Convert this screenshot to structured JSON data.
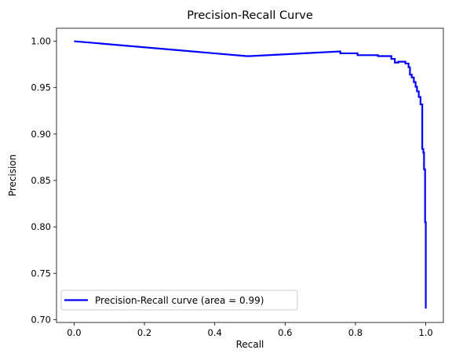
{
  "chart_data": {
    "type": "line",
    "title": "Precision-Recall Curve",
    "xlabel": "Recall",
    "ylabel": "Precision",
    "xlim": [
      -0.05,
      1.05
    ],
    "ylim": [
      0.697,
      1.014
    ],
    "xticks": [
      0.0,
      0.2,
      0.4,
      0.6,
      0.8,
      1.0
    ],
    "xtick_labels": [
      "0.0",
      "0.2",
      "0.4",
      "0.6",
      "0.8",
      "1.0"
    ],
    "yticks": [
      0.7,
      0.75,
      0.8,
      0.85,
      0.9,
      0.95,
      1.0
    ],
    "ytick_labels": [
      "0.70",
      "0.75",
      "0.80",
      "0.85",
      "0.90",
      "0.95",
      "1.00"
    ],
    "grid": false,
    "legend_position": "lower-left",
    "series": [
      {
        "name": "Precision-Recall curve (area = 0.99)",
        "color": "#0000ff",
        "x": [
          0.0,
          0.49,
          0.5,
          0.757,
          0.757,
          0.806,
          0.806,
          0.864,
          0.864,
          0.902,
          0.902,
          0.912,
          0.912,
          0.922,
          0.922,
          0.942,
          0.942,
          0.951,
          0.951,
          0.955,
          0.955,
          0.96,
          0.96,
          0.966,
          0.966,
          0.971,
          0.971,
          0.975,
          0.975,
          0.98,
          0.98,
          0.985,
          0.985,
          0.99,
          0.99,
          0.993,
          0.993,
          0.995,
          0.995,
          0.998,
          0.998,
          1.0,
          1.0
        ],
        "y": [
          1.0,
          0.984,
          0.984,
          0.989,
          0.987,
          0.987,
          0.985,
          0.985,
          0.984,
          0.984,
          0.981,
          0.981,
          0.977,
          0.977,
          0.978,
          0.978,
          0.976,
          0.976,
          0.972,
          0.972,
          0.964,
          0.964,
          0.961,
          0.961,
          0.956,
          0.956,
          0.951,
          0.951,
          0.946,
          0.946,
          0.94,
          0.94,
          0.932,
          0.932,
          0.884,
          0.884,
          0.88,
          0.88,
          0.862,
          0.862,
          0.805,
          0.805,
          0.712
        ]
      }
    ]
  }
}
